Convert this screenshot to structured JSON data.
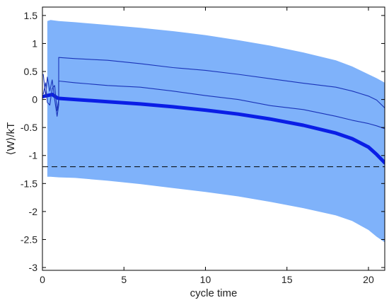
{
  "chart_data": {
    "type": "line",
    "title": "",
    "xlabel": "cycle time",
    "ylabel": "⟨W⟩/kT",
    "xlim": [
      0,
      21
    ],
    "ylim": [
      -3.05,
      1.65
    ],
    "xticks": [
      0,
      5,
      10,
      15,
      20
    ],
    "yticks": [
      -3,
      -2.5,
      -2,
      -1.5,
      -1,
      -0.5,
      0,
      0.5,
      1,
      1.5
    ],
    "grid": false,
    "legend": "none",
    "colors": {
      "band": "#7fb2fa",
      "mean": "#0a1ee6",
      "lines": "#1a33b8",
      "reference": "#000000"
    },
    "band": {
      "x": [
        0.3,
        0.5,
        1.0,
        2,
        4,
        6,
        8,
        10,
        12,
        14,
        16,
        18,
        19,
        20,
        20.5,
        21
      ],
      "upper": [
        1.4,
        1.42,
        1.4,
        1.38,
        1.33,
        1.28,
        1.22,
        1.15,
        1.06,
        0.96,
        0.84,
        0.7,
        0.59,
        0.45,
        0.38,
        0.3
      ],
      "lower": [
        -1.38,
        -1.38,
        -1.39,
        -1.4,
        -1.45,
        -1.51,
        -1.58,
        -1.65,
        -1.73,
        -1.83,
        -1.94,
        -2.07,
        -2.17,
        -2.33,
        -2.45,
        -2.55
      ]
    },
    "series": [
      {
        "x": [
          0,
          0.3,
          0.6,
          0.9,
          1,
          2,
          4,
          6,
          8,
          10,
          12,
          14,
          16,
          18,
          19,
          20,
          20.5,
          21
        ],
        "values": [
          0.05,
          0.07,
          0.09,
          0.03,
          0.02,
          0.0,
          -0.04,
          -0.08,
          -0.13,
          -0.19,
          -0.26,
          -0.35,
          -0.46,
          -0.6,
          -0.7,
          -0.85,
          -0.98,
          -1.13
        ],
        "style": "thick"
      },
      {
        "x": [
          0.05,
          0.2,
          0.3,
          0.45,
          0.6,
          0.75,
          0.9,
          1.0,
          1.0,
          2,
          4,
          6,
          8,
          10,
          12,
          14,
          16,
          18,
          19,
          20,
          20.5,
          21
        ],
        "values": [
          0.45,
          0.05,
          0.4,
          0.15,
          0.35,
          0.0,
          -0.3,
          -0.1,
          0.75,
          0.73,
          0.7,
          0.64,
          0.57,
          0.52,
          0.45,
          0.37,
          0.29,
          0.22,
          0.15,
          0.06,
          -0.01,
          -0.15
        ],
        "style": "thin"
      },
      {
        "x": [
          0.05,
          0.2,
          0.3,
          0.45,
          0.6,
          0.75,
          0.9,
          1.0,
          1.0,
          2,
          4,
          6,
          8,
          10,
          12,
          14,
          16,
          18,
          19,
          20,
          20.5,
          21
        ],
        "values": [
          0.1,
          0.3,
          -0.05,
          -0.1,
          0.2,
          0.25,
          -0.2,
          0.0,
          0.33,
          0.3,
          0.25,
          0.22,
          0.15,
          0.07,
          0.0,
          -0.11,
          -0.18,
          -0.3,
          -0.37,
          -0.43,
          -0.47,
          -0.52
        ],
        "style": "thin"
      }
    ],
    "reference_line": {
      "y": -1.2,
      "style": "dashed"
    }
  }
}
